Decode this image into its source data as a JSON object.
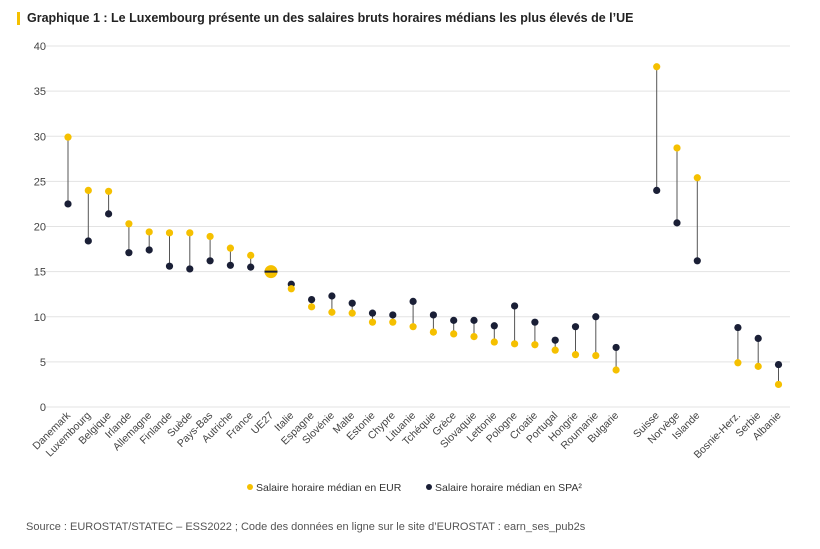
{
  "chart_data": {
    "type": "dot-range",
    "title": "Graphique 1 :  Le Luxembourg présente un des salaires bruts horaires médians les plus élevés de l’UE",
    "ylim": [
      0,
      40
    ],
    "yticks": [
      0,
      5,
      10,
      15,
      20,
      25,
      30,
      35,
      40
    ],
    "grid": true,
    "legend_position": "bottom",
    "groups": [
      [
        "Danemark",
        "Luxembourg",
        "Belgique",
        "Irlande",
        "Allemagne",
        "Finlande",
        "Suède",
        "Pays-Bas",
        "Autriche",
        "France",
        "UE27",
        "Italie",
        "Espagne",
        "Slovénie",
        "Malte",
        "Estonie",
        "Chypre",
        "Lituanie",
        "Tchéquie",
        "Grèce",
        "Slovaquie",
        "Lettonie",
        "Pologne",
        "Croatie",
        "Portugal",
        "Hongrie",
        "Roumanie",
        "Bulgarie"
      ],
      [
        "Suisse",
        "Norvège",
        "Islande"
      ],
      [
        "Bosnie-Herz.",
        "Serbie",
        "Albanie"
      ]
    ],
    "series": [
      {
        "name": "Salaire horaire médian en EUR",
        "color": "#f5c000",
        "values": [
          29.9,
          24.0,
          23.9,
          20.3,
          19.4,
          19.3,
          19.3,
          18.9,
          17.6,
          16.8,
          15.0,
          13.1,
          11.1,
          10.5,
          10.4,
          9.4,
          9.4,
          8.9,
          8.3,
          8.1,
          7.8,
          7.2,
          7.0,
          6.9,
          6.3,
          5.8,
          5.7,
          4.1,
          37.7,
          28.7,
          25.4,
          4.9,
          4.5,
          2.5
        ]
      },
      {
        "name": "Salaire horaire médian en SPA²",
        "color": "#1a1f36",
        "values": [
          22.5,
          18.4,
          21.4,
          17.1,
          17.4,
          15.6,
          15.3,
          16.2,
          15.7,
          15.5,
          15.0,
          13.6,
          11.9,
          12.3,
          11.5,
          10.4,
          10.2,
          11.7,
          10.2,
          9.6,
          9.6,
          9.0,
          11.2,
          9.4,
          7.4,
          8.9,
          10.0,
          6.6,
          24.0,
          20.4,
          16.2,
          8.8,
          7.6,
          4.7
        ]
      }
    ],
    "highlight": "UE27"
  },
  "source": "Source : EUROSTAT/STATEC – ESS2022 ; Code des données en ligne sur le site d’EUROSTAT : earn_ses_pub2s"
}
